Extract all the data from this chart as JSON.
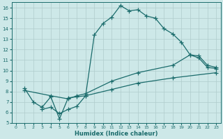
{
  "xlabel": "Humidex (Indice chaleur)",
  "bg_color": "#cde8e8",
  "grid_color": "#b0cccc",
  "line_color": "#1a6b6b",
  "xlim": [
    -0.5,
    23.5
  ],
  "ylim": [
    5,
    16.5
  ],
  "xticks": [
    0,
    1,
    2,
    3,
    4,
    5,
    6,
    7,
    8,
    9,
    10,
    11,
    12,
    13,
    14,
    15,
    16,
    17,
    18,
    19,
    20,
    21,
    22,
    23
  ],
  "yticks": [
    5,
    6,
    7,
    8,
    9,
    10,
    11,
    12,
    13,
    14,
    15,
    16
  ],
  "line1_x": [
    1,
    2,
    3,
    4,
    5,
    6,
    7,
    8,
    9,
    10,
    11,
    12,
    13,
    14,
    15,
    16,
    17,
    18,
    19,
    20,
    21,
    22,
    23
  ],
  "line1_y": [
    8.3,
    7.0,
    6.5,
    7.5,
    5.4,
    7.4,
    7.5,
    7.6,
    13.4,
    14.5,
    15.1,
    16.2,
    15.7,
    15.8,
    15.2,
    15.0,
    14.0,
    13.5,
    12.7,
    11.5,
    11.2,
    10.3,
    10.2
  ],
  "line2_x": [
    1,
    4,
    6,
    7,
    8,
    11,
    14,
    18,
    20,
    21,
    22,
    23
  ],
  "line2_y": [
    8.1,
    7.6,
    7.3,
    7.6,
    7.8,
    9.0,
    9.8,
    10.5,
    11.5,
    11.4,
    10.5,
    10.3
  ],
  "line3_x": [
    3,
    4,
    5,
    6,
    7,
    8,
    11,
    14,
    18,
    23
  ],
  "line3_y": [
    6.3,
    6.5,
    5.9,
    6.3,
    6.6,
    7.6,
    8.2,
    8.8,
    9.3,
    9.8
  ]
}
